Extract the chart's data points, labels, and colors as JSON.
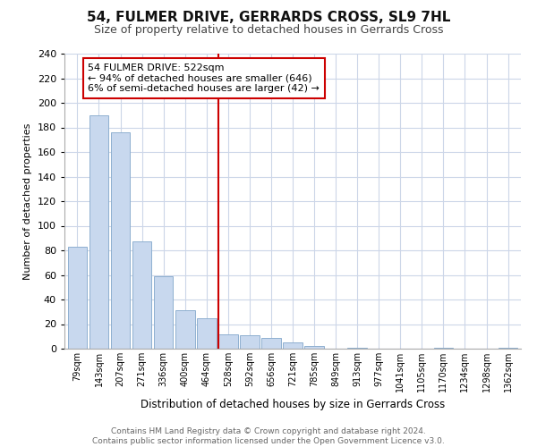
{
  "title": "54, FULMER DRIVE, GERRARDS CROSS, SL9 7HL",
  "subtitle": "Size of property relative to detached houses in Gerrards Cross",
  "xlabel": "Distribution of detached houses by size in Gerrards Cross",
  "ylabel": "Number of detached properties",
  "bar_labels": [
    "79sqm",
    "143sqm",
    "207sqm",
    "271sqm",
    "336sqm",
    "400sqm",
    "464sqm",
    "528sqm",
    "592sqm",
    "656sqm",
    "721sqm",
    "785sqm",
    "849sqm",
    "913sqm",
    "977sqm",
    "1041sqm",
    "1105sqm",
    "1170sqm",
    "1234sqm",
    "1298sqm",
    "1362sqm"
  ],
  "bar_values": [
    83,
    190,
    176,
    87,
    59,
    31,
    25,
    12,
    11,
    9,
    5,
    2,
    0,
    1,
    0,
    0,
    0,
    1,
    0,
    0,
    1
  ],
  "bar_color": "#c8d8ee",
  "bar_edge_color": "#8fb0d0",
  "vline_index": 7,
  "vline_color": "#cc0000",
  "annotation_title": "54 FULMER DRIVE: 522sqm",
  "annotation_line1": "← 94% of detached houses are smaller (646)",
  "annotation_line2": "6% of semi-detached houses are larger (42) →",
  "annotation_box_color": "#ffffff",
  "annotation_box_edge": "#cc0000",
  "ylim": [
    0,
    240
  ],
  "yticks": [
    0,
    20,
    40,
    60,
    80,
    100,
    120,
    140,
    160,
    180,
    200,
    220,
    240
  ],
  "footer_line1": "Contains HM Land Registry data © Crown copyright and database right 2024.",
  "footer_line2": "Contains public sector information licensed under the Open Government Licence v3.0.",
  "background_color": "#ffffff",
  "grid_color": "#ccd6e8",
  "title_fontsize": 11,
  "subtitle_fontsize": 9,
  "xlabel_fontsize": 8.5,
  "ylabel_fontsize": 8,
  "xtick_fontsize": 7,
  "ytick_fontsize": 8,
  "footer_fontsize": 6.5,
  "annotation_fontsize": 8
}
